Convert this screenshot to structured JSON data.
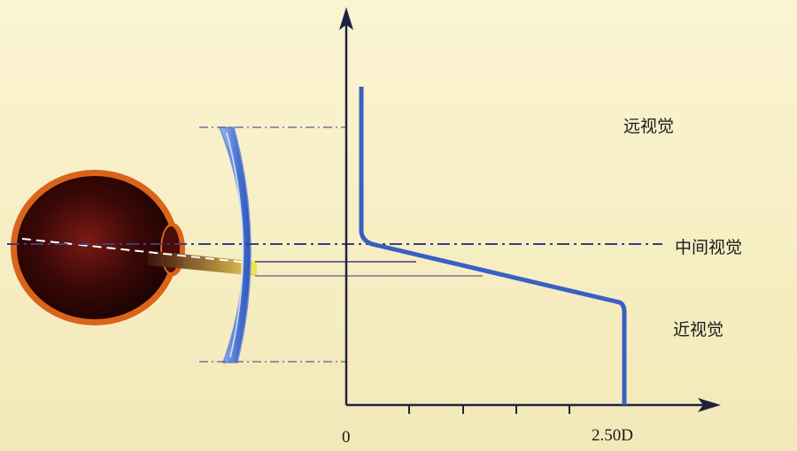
{
  "zones": {
    "far": "远视觉",
    "intermediate": "中间视觉",
    "near": "近视觉"
  },
  "x_axis": {
    "start_label": "0",
    "end_label": "2.50D"
  },
  "colors": {
    "background": "#f7efc6",
    "power_curve": "#3a5fc4",
    "axis": "#1d2340",
    "guide_line": "#3b3f78",
    "lens": "#5f86d6",
    "eye_rim": "#e0701c"
  }
}
